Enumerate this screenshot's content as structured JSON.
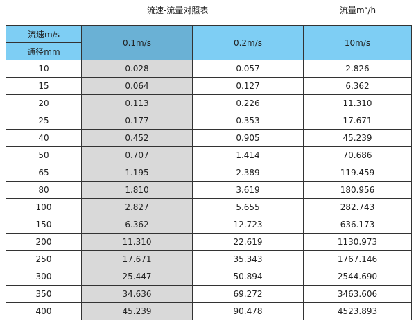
{
  "title": "流速-流量对照表",
  "unit": "流量m³/h",
  "header": {
    "speed_label": "流速m/s",
    "diameter_label": "通径mm",
    "columns": [
      "0.1m/s",
      "0.2m/s",
      "10m/s"
    ]
  },
  "colors": {
    "header": "#7ecef4",
    "header_highlight": "#6ab1d5",
    "column_highlight": "#d9d9d9"
  },
  "rows": [
    [
      "10",
      "0.028",
      "0.057",
      "2.826"
    ],
    [
      "15",
      "0.064",
      "0.127",
      "6.362"
    ],
    [
      "20",
      "0.113",
      "0.226",
      "11.310"
    ],
    [
      "25",
      "0.177",
      "0.353",
      "17.671"
    ],
    [
      "40",
      "0.452",
      "0.905",
      "45.239"
    ],
    [
      "50",
      "0.707",
      "1.414",
      "70.686"
    ],
    [
      "65",
      "1.195",
      "2.389",
      "119.459"
    ],
    [
      "80",
      "1.810",
      "3.619",
      "180.956"
    ],
    [
      "100",
      "2.827",
      "5.655",
      "282.743"
    ],
    [
      "150",
      "6.362",
      "12.723",
      "636.173"
    ],
    [
      "200",
      "11.310",
      "22.619",
      "1130.973"
    ],
    [
      "250",
      "17.671",
      "35.343",
      "1767.146"
    ],
    [
      "300",
      "25.447",
      "50.894",
      "2544.690"
    ],
    [
      "350",
      "34.636",
      "69.272",
      "3463.606"
    ],
    [
      "400",
      "45.239",
      "90.478",
      "4523.893"
    ]
  ]
}
